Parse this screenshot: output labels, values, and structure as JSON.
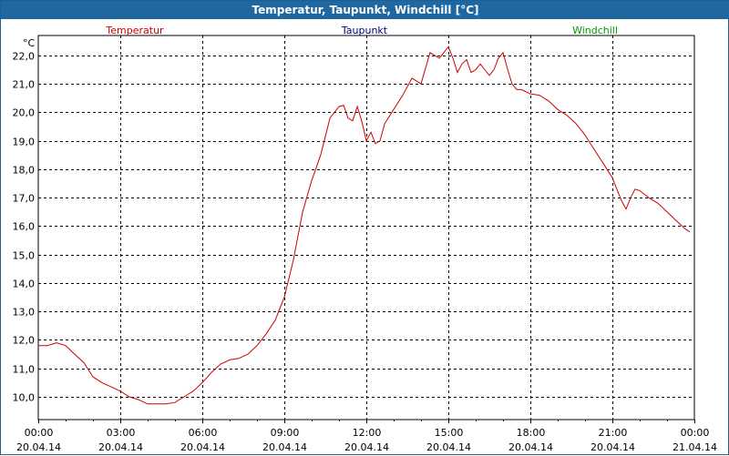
{
  "window": {
    "title": "Temperatur, Taupunkt, Windchill [°C]"
  },
  "chart_data": {
    "type": "line",
    "title": "Temperatur, Taupunkt, Windchill [°C]",
    "ylabel": "°C",
    "xlabel": "",
    "ylim": [
      9.2,
      22.7
    ],
    "xlim": [
      0,
      24
    ],
    "grid": true,
    "legend_position": "top",
    "legend": [
      {
        "name": "Temperatur",
        "color": "#cc0000"
      },
      {
        "name": "Taupunkt",
        "color": "#000080"
      },
      {
        "name": "Windchill",
        "color": "#009900"
      }
    ],
    "y_ticks": [
      {
        "value": 10.0,
        "label": "10,0"
      },
      {
        "value": 11.0,
        "label": "11,0"
      },
      {
        "value": 12.0,
        "label": "12,0"
      },
      {
        "value": 13.0,
        "label": "13,0"
      },
      {
        "value": 14.0,
        "label": "14,0"
      },
      {
        "value": 15.0,
        "label": "15,0"
      },
      {
        "value": 16.0,
        "label": "16,0"
      },
      {
        "value": 17.0,
        "label": "17,0"
      },
      {
        "value": 18.0,
        "label": "18,0"
      },
      {
        "value": 19.0,
        "label": "19,0"
      },
      {
        "value": 20.0,
        "label": "20,0"
      },
      {
        "value": 21.0,
        "label": "21,0"
      },
      {
        "value": 22.0,
        "label": "22,0"
      }
    ],
    "x_ticks": [
      {
        "value": 0,
        "time": "00:00",
        "date": "20.04.14"
      },
      {
        "value": 3,
        "time": "03:00",
        "date": "20.04.14"
      },
      {
        "value": 6,
        "time": "06:00",
        "date": "20.04.14"
      },
      {
        "value": 9,
        "time": "09:00",
        "date": "20.04.14"
      },
      {
        "value": 12,
        "time": "12:00",
        "date": "20.04.14"
      },
      {
        "value": 15,
        "time": "15:00",
        "date": "20.04.14"
      },
      {
        "value": 18,
        "time": "18:00",
        "date": "20.04.14"
      },
      {
        "value": 21,
        "time": "21:00",
        "date": "20.04.14"
      },
      {
        "value": 24,
        "time": "00:00",
        "date": "21.04.14"
      }
    ],
    "series": [
      {
        "name": "Temperatur",
        "color": "#cc0000",
        "x": [
          0.0,
          0.33,
          0.67,
          1.0,
          1.33,
          1.67,
          2.0,
          2.33,
          2.67,
          3.0,
          3.33,
          3.67,
          4.0,
          4.33,
          4.67,
          5.0,
          5.33,
          5.67,
          6.0,
          6.33,
          6.67,
          7.0,
          7.33,
          7.67,
          8.0,
          8.33,
          8.67,
          9.0,
          9.33,
          9.67,
          10.0,
          10.33,
          10.67,
          11.0,
          11.17,
          11.33,
          11.5,
          11.67,
          11.83,
          12.0,
          12.17,
          12.33,
          12.5,
          12.67,
          13.0,
          13.33,
          13.67,
          14.0,
          14.33,
          14.67,
          15.0,
          15.17,
          15.33,
          15.5,
          15.67,
          15.83,
          16.0,
          16.17,
          16.33,
          16.5,
          16.67,
          16.83,
          17.0,
          17.17,
          17.33,
          17.5,
          17.67,
          18.0,
          18.33,
          18.67,
          19.0,
          19.33,
          19.67,
          20.0,
          20.33,
          20.67,
          21.0,
          21.33,
          21.5,
          21.67,
          21.83,
          22.0,
          22.33,
          22.67,
          23.0,
          23.33,
          23.67,
          23.83
        ],
        "values": [
          11.8,
          11.8,
          11.9,
          11.8,
          11.5,
          11.2,
          10.7,
          10.5,
          10.35,
          10.2,
          10.0,
          9.9,
          9.75,
          9.75,
          9.75,
          9.8,
          10.0,
          10.2,
          10.5,
          10.85,
          11.15,
          11.3,
          11.35,
          11.5,
          11.8,
          12.2,
          12.7,
          13.5,
          14.8,
          16.5,
          17.6,
          18.5,
          19.8,
          20.2,
          20.25,
          19.8,
          19.7,
          20.2,
          19.7,
          19.0,
          19.3,
          18.9,
          19.0,
          19.6,
          20.1,
          20.6,
          21.2,
          21.0,
          22.1,
          21.9,
          22.3,
          21.9,
          21.4,
          21.7,
          21.85,
          21.4,
          21.5,
          21.7,
          21.5,
          21.3,
          21.5,
          21.9,
          22.1,
          21.5,
          21.0,
          20.8,
          20.8,
          20.65,
          20.6,
          20.4,
          20.1,
          19.9,
          19.6,
          19.2,
          18.7,
          18.2,
          17.7,
          16.9,
          16.6,
          17.0,
          17.3,
          17.25,
          17.0,
          16.8,
          16.5,
          16.2,
          15.9,
          15.8
        ]
      }
    ]
  }
}
